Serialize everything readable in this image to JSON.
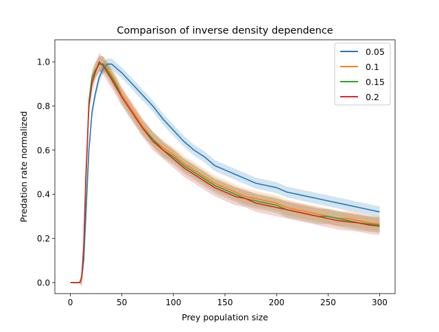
{
  "chart_data": {
    "type": "line",
    "title": "Comparison of inverse density dependence",
    "xlabel": "Prey population size",
    "ylabel": "Predation rate normalized",
    "xlim": [
      -15,
      315
    ],
    "ylim": [
      -0.05,
      1.1
    ],
    "xticks": [
      0,
      50,
      100,
      150,
      200,
      250,
      300
    ],
    "yticks": [
      0.0,
      0.2,
      0.4,
      0.6,
      0.8,
      1.0
    ],
    "xtick_labels": [
      "0",
      "50",
      "100",
      "150",
      "200",
      "250",
      "300"
    ],
    "ytick_labels": [
      "0.0",
      "0.2",
      "0.4",
      "0.6",
      "0.8",
      "1.0"
    ],
    "grid": false,
    "legend_position": "top-right",
    "series": [
      {
        "name": "0.05",
        "color": "#1f77b4",
        "x": [
          0,
          5,
          9,
          11,
          13,
          15,
          18,
          21,
          24,
          28,
          32,
          36,
          40,
          45,
          50,
          60,
          70,
          80,
          90,
          100,
          110,
          120,
          130,
          140,
          150,
          160,
          170,
          180,
          190,
          200,
          210,
          220,
          230,
          240,
          250,
          260,
          270,
          280,
          290,
          300
        ],
        "y": [
          0.0,
          0.0,
          0.0,
          0.02,
          0.1,
          0.3,
          0.6,
          0.77,
          0.85,
          0.93,
          0.97,
          0.99,
          0.99,
          0.97,
          0.95,
          0.9,
          0.85,
          0.8,
          0.74,
          0.69,
          0.64,
          0.6,
          0.57,
          0.53,
          0.51,
          0.49,
          0.47,
          0.45,
          0.44,
          0.43,
          0.41,
          0.4,
          0.39,
          0.38,
          0.37,
          0.36,
          0.35,
          0.34,
          0.33,
          0.32
        ],
        "band": 0.025
      },
      {
        "name": "0.1",
        "color": "#ff7f0e",
        "x": [
          0,
          5,
          9,
          11,
          13,
          15,
          18,
          21,
          24,
          28,
          32,
          36,
          40,
          45,
          50,
          60,
          70,
          80,
          90,
          100,
          110,
          120,
          130,
          140,
          150,
          160,
          170,
          180,
          190,
          200,
          210,
          220,
          230,
          240,
          250,
          260,
          270,
          280,
          290,
          300
        ],
        "y": [
          0.0,
          0.0,
          0.0,
          0.02,
          0.15,
          0.45,
          0.8,
          0.92,
          0.96,
          0.99,
          0.99,
          0.97,
          0.94,
          0.9,
          0.85,
          0.78,
          0.71,
          0.65,
          0.61,
          0.58,
          0.54,
          0.51,
          0.48,
          0.45,
          0.43,
          0.41,
          0.39,
          0.38,
          0.37,
          0.36,
          0.34,
          0.33,
          0.32,
          0.31,
          0.3,
          0.29,
          0.29,
          0.28,
          0.27,
          0.265
        ],
        "band": 0.035
      },
      {
        "name": "0.15",
        "color": "#2ca02c",
        "x": [
          0,
          5,
          9,
          11,
          13,
          15,
          18,
          21,
          24,
          28,
          32,
          36,
          40,
          45,
          50,
          60,
          70,
          80,
          90,
          100,
          110,
          120,
          130,
          140,
          150,
          160,
          170,
          180,
          190,
          200,
          210,
          220,
          230,
          240,
          250,
          260,
          270,
          280,
          290,
          300
        ],
        "y": [
          0.0,
          0.0,
          0.0,
          0.02,
          0.15,
          0.45,
          0.82,
          0.93,
          0.96,
          0.99,
          0.99,
          0.96,
          0.93,
          0.89,
          0.84,
          0.77,
          0.7,
          0.65,
          0.6,
          0.57,
          0.53,
          0.5,
          0.47,
          0.44,
          0.42,
          0.4,
          0.38,
          0.37,
          0.36,
          0.35,
          0.33,
          0.32,
          0.31,
          0.3,
          0.3,
          0.29,
          0.28,
          0.27,
          0.265,
          0.26
        ],
        "band": 0.035
      },
      {
        "name": "0.2",
        "color": "#d62728",
        "x": [
          0,
          5,
          9,
          11,
          13,
          15,
          18,
          21,
          24,
          28,
          32,
          36,
          40,
          45,
          50,
          60,
          70,
          80,
          90,
          100,
          110,
          120,
          130,
          140,
          150,
          160,
          170,
          180,
          190,
          200,
          210,
          220,
          230,
          240,
          250,
          260,
          270,
          280,
          290,
          300
        ],
        "y": [
          0.0,
          0.0,
          0.0,
          0.02,
          0.17,
          0.48,
          0.8,
          0.9,
          0.95,
          1.0,
          0.98,
          0.95,
          0.92,
          0.88,
          0.84,
          0.77,
          0.7,
          0.64,
          0.6,
          0.56,
          0.52,
          0.49,
          0.46,
          0.43,
          0.41,
          0.39,
          0.38,
          0.36,
          0.35,
          0.34,
          0.33,
          0.32,
          0.31,
          0.3,
          0.29,
          0.28,
          0.275,
          0.27,
          0.26,
          0.255
        ],
        "band": 0.04
      }
    ]
  }
}
